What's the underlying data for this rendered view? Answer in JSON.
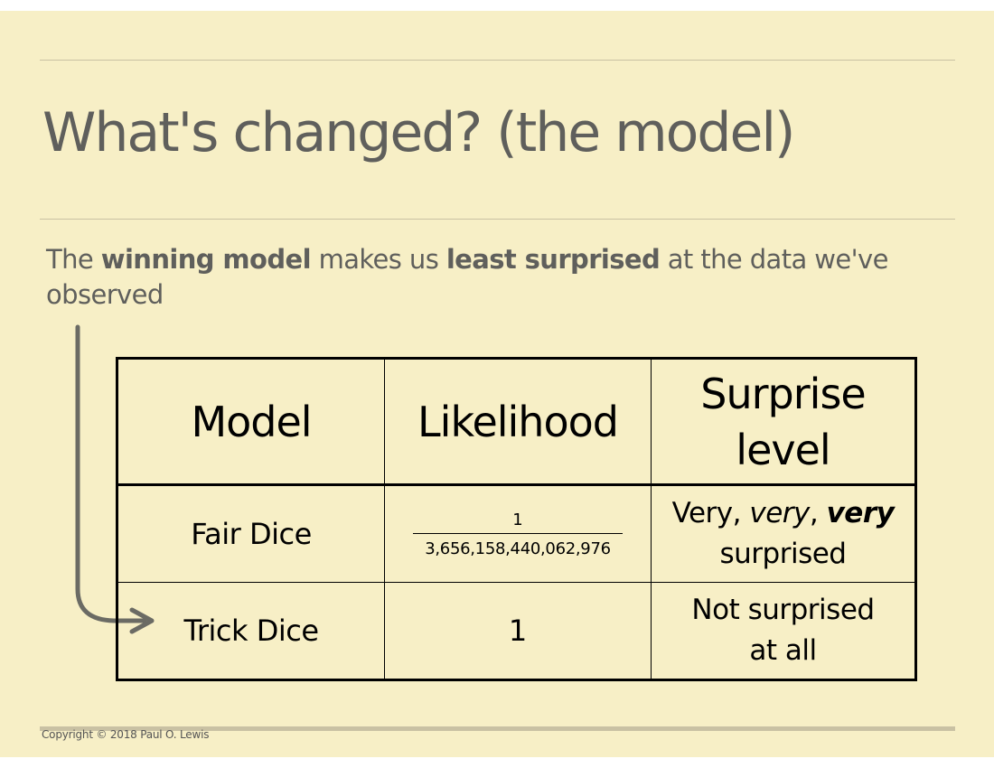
{
  "slide": {
    "title": "What's changed? (the model)",
    "subtitle": {
      "part1": "The ",
      "bold1": "winning model",
      "part2": " makes us ",
      "bold2": "least surprised",
      "part3": " at the data we've observed"
    },
    "table": {
      "headers": {
        "model": "Model",
        "likelihood": "Likelihood",
        "surprise_line1": "Surprise",
        "surprise_line2": "level"
      },
      "rows": [
        {
          "model": "Fair Dice",
          "likelihood_numerator": "1",
          "likelihood_denominator": "3,656,158,440,062,976",
          "surprise_very1": "Very,",
          "surprise_very2": "very",
          "surprise_comma": ",",
          "surprise_very3": "very",
          "surprise_line2": "surprised"
        },
        {
          "model": "Trick Dice",
          "likelihood": "1",
          "surprise_line1": "Not surprised",
          "surprise_line2": "at all"
        }
      ]
    },
    "copyright": "Copyright © 2018 Paul O. Lewis",
    "colors": {
      "background": "#f7efc6",
      "text": "#5f5f5c",
      "rule": "#c9c1a3",
      "arrow": "#6b6b64"
    }
  }
}
